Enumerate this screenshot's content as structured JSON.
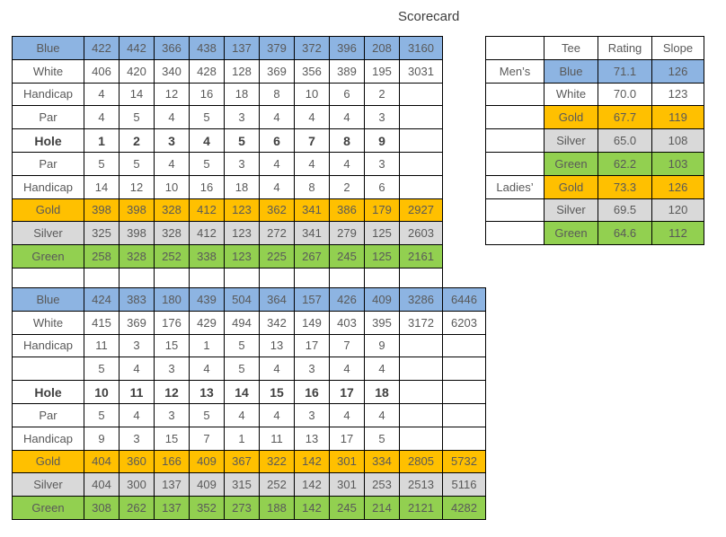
{
  "title": "Scorecard",
  "colors": {
    "blue": "#8DB4E2",
    "gold": "#FFC000",
    "silver": "#D9D9D9",
    "green": "#92D050",
    "white": "#FFFFFF"
  },
  "front_nine": {
    "rows": [
      {
        "label": "Blue",
        "bg": "blue",
        "cells": [
          "422",
          "442",
          "366",
          "438",
          "137",
          "379",
          "372",
          "396",
          "208",
          "3160"
        ]
      },
      {
        "label": "White",
        "bg": "white",
        "cells": [
          "406",
          "420",
          "340",
          "428",
          "128",
          "369",
          "356",
          "389",
          "195",
          "3031"
        ]
      },
      {
        "label": "Handicap",
        "bg": "white",
        "cells": [
          "4",
          "14",
          "12",
          "16",
          "18",
          "8",
          "10",
          "6",
          "2",
          ""
        ]
      },
      {
        "label": "Par",
        "bg": "white",
        "cells": [
          "4",
          "5",
          "4",
          "5",
          "3",
          "4",
          "4",
          "4",
          "3",
          ""
        ]
      },
      {
        "label": "Hole",
        "bg": "white",
        "bold": true,
        "cells": [
          "1",
          "2",
          "3",
          "4",
          "5",
          "6",
          "7",
          "8",
          "9",
          ""
        ]
      },
      {
        "label": "Par",
        "bg": "white",
        "cells": [
          "5",
          "5",
          "4",
          "5",
          "3",
          "4",
          "4",
          "4",
          "3",
          ""
        ]
      },
      {
        "label": "Handicap",
        "bg": "white",
        "cells": [
          "14",
          "12",
          "10",
          "16",
          "18",
          "4",
          "8",
          "2",
          "6",
          ""
        ]
      },
      {
        "label": "Gold",
        "bg": "gold",
        "cells": [
          "398",
          "398",
          "328",
          "412",
          "123",
          "362",
          "341",
          "386",
          "179",
          "2927"
        ]
      },
      {
        "label": "Silver",
        "bg": "silver",
        "cells": [
          "325",
          "398",
          "328",
          "412",
          "123",
          "272",
          "341",
          "279",
          "125",
          "2603"
        ]
      },
      {
        "label": "Green",
        "bg": "green",
        "cells": [
          "258",
          "328",
          "252",
          "338",
          "123",
          "225",
          "267",
          "245",
          "125",
          "2161"
        ]
      },
      {
        "label": "",
        "bg": "white",
        "spacer": true,
        "cells": [
          "",
          "",
          "",
          "",
          "",
          "",
          "",
          "",
          "",
          ""
        ]
      }
    ]
  },
  "back_nine": {
    "rows": [
      {
        "label": "Blue",
        "bg": "blue",
        "cells": [
          "424",
          "383",
          "180",
          "439",
          "504",
          "364",
          "157",
          "426",
          "409",
          "3286",
          "6446"
        ]
      },
      {
        "label": "White",
        "bg": "white",
        "cells": [
          "415",
          "369",
          "176",
          "429",
          "494",
          "342",
          "149",
          "403",
          "395",
          "3172",
          "6203"
        ]
      },
      {
        "label": "Handicap",
        "bg": "white",
        "cells": [
          "11",
          "3",
          "15",
          "1",
          "5",
          "13",
          "17",
          "7",
          "9",
          "",
          ""
        ]
      },
      {
        "label": "",
        "bg": "white",
        "cells": [
          "5",
          "4",
          "3",
          "4",
          "5",
          "4",
          "3",
          "4",
          "4",
          "",
          ""
        ]
      },
      {
        "label": "Hole",
        "bg": "white",
        "bold": true,
        "cells": [
          "10",
          "11",
          "12",
          "13",
          "14",
          "15",
          "16",
          "17",
          "18",
          "",
          ""
        ]
      },
      {
        "label": "Par",
        "bg": "white",
        "cells": [
          "5",
          "4",
          "3",
          "5",
          "4",
          "4",
          "3",
          "4",
          "4",
          "",
          ""
        ]
      },
      {
        "label": "Handicap",
        "bg": "white",
        "cells": [
          "9",
          "3",
          "15",
          "7",
          "1",
          "11",
          "13",
          "17",
          "5",
          "",
          ""
        ]
      },
      {
        "label": "Gold",
        "bg": "gold",
        "cells": [
          "404",
          "360",
          "166",
          "409",
          "367",
          "322",
          "142",
          "301",
          "334",
          "2805",
          "5732"
        ]
      },
      {
        "label": "Silver",
        "bg": "silver",
        "cells": [
          "404",
          "300",
          "137",
          "409",
          "315",
          "252",
          "142",
          "301",
          "253",
          "2513",
          "5116"
        ]
      },
      {
        "label": "Green",
        "bg": "green",
        "cells": [
          "308",
          "262",
          "137",
          "352",
          "273",
          "188",
          "142",
          "245",
          "214",
          "2121",
          "4282"
        ]
      }
    ]
  },
  "tee_info": {
    "headers": [
      "",
      "Tee",
      "Rating",
      "Slope"
    ],
    "rows": [
      {
        "group": "Men’s",
        "tee": "Blue",
        "rating": "71.1",
        "slope": "126",
        "bg": "blue"
      },
      {
        "group": "",
        "tee": "White",
        "rating": "70.0",
        "slope": "123",
        "bg": "white"
      },
      {
        "group": "",
        "tee": "Gold",
        "rating": "67.7",
        "slope": "119",
        "bg": "gold"
      },
      {
        "group": "",
        "tee": "Silver",
        "rating": "65.0",
        "slope": "108",
        "bg": "silver"
      },
      {
        "group": "",
        "tee": "Green",
        "rating": "62.2",
        "slope": "103",
        "bg": "green"
      },
      {
        "group": "Ladies’",
        "tee": "Gold",
        "rating": "73.3",
        "slope": "126",
        "bg": "gold"
      },
      {
        "group": "",
        "tee": "Silver",
        "rating": "69.5",
        "slope": "120",
        "bg": "silver"
      },
      {
        "group": "",
        "tee": "Green",
        "rating": "64.6",
        "slope": "112",
        "bg": "green"
      }
    ]
  }
}
